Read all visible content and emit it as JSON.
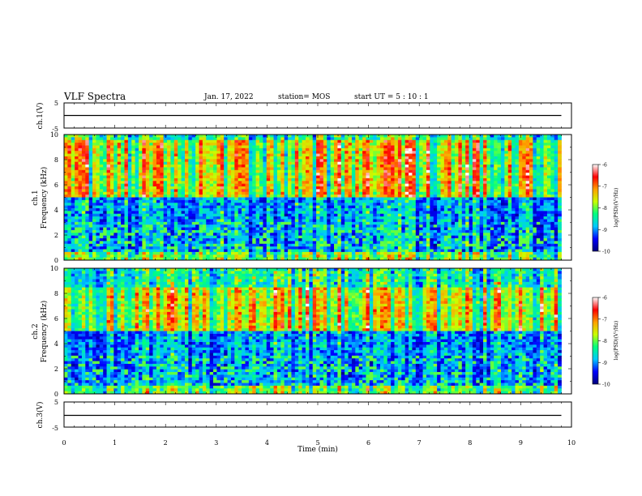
{
  "header": {
    "title": "VLF Spectra",
    "date": "Jan. 17, 2022",
    "station": "station= MOS",
    "start_ut": "start UT = 5 : 10 : 1"
  },
  "colorscale": {
    "stops": [
      "#00007a",
      "#0000ff",
      "#00c8ff",
      "#00ff80",
      "#c8ff00",
      "#ffa000",
      "#ff0000",
      "#ffffff"
    ]
  },
  "chart_data": [
    {
      "type": "line",
      "panel": "ch1-waveform",
      "ylabel": "ch.1(V)",
      "ylim": [
        -5,
        5
      ],
      "yticks": [
        "5",
        "-5"
      ],
      "series": [
        {
          "x": [
            0,
            9.8
          ],
          "y": [
            0,
            0
          ]
        }
      ]
    },
    {
      "type": "heatmap",
      "panel": "ch1-spectrogram",
      "ylabel": "ch.1 Frequency (kHz)",
      "ylim": [
        0,
        10
      ],
      "yticks": [
        "0",
        "2",
        "4",
        "6",
        "8",
        "10"
      ],
      "x_range": [
        0,
        9.8
      ],
      "intense_band_khz": [
        5,
        9.5
      ],
      "value_scale": "log(PSD)",
      "colorbar": {
        "label": "log(PSD)(V²/Hz)",
        "ticks": [
          "-6",
          "-7",
          "-8",
          "-9",
          "-10"
        ],
        "range": [
          -10,
          -6
        ]
      }
    },
    {
      "type": "heatmap",
      "panel": "ch2-spectrogram",
      "ylabel": "ch.2 Frequency (kHz)",
      "ylim": [
        0,
        10
      ],
      "yticks": [
        "0",
        "2",
        "4",
        "6",
        "8",
        "10"
      ],
      "x_range": [
        0,
        9.8
      ],
      "intense_band_khz": [
        5,
        8.5
      ],
      "value_scale": "log(PSD)",
      "colorbar": {
        "label": "log(PSD)(V²/Hz)",
        "ticks": [
          "-6",
          "-7",
          "-8",
          "-9",
          "-10"
        ],
        "range": [
          -10,
          -6
        ]
      }
    },
    {
      "type": "line",
      "panel": "ch3-waveform",
      "ylabel": "ch.3(V)",
      "ylim": [
        -5,
        5
      ],
      "yticks": [
        "5",
        "-5"
      ],
      "series": [
        {
          "x": [
            0,
            9.8
          ],
          "y": [
            0,
            0
          ]
        }
      ]
    }
  ],
  "xaxis": {
    "label": "Time (min)",
    "range": [
      0,
      10
    ],
    "ticks": [
      "0",
      "1",
      "2",
      "3",
      "4",
      "5",
      "6",
      "7",
      "8",
      "9",
      "10"
    ]
  }
}
